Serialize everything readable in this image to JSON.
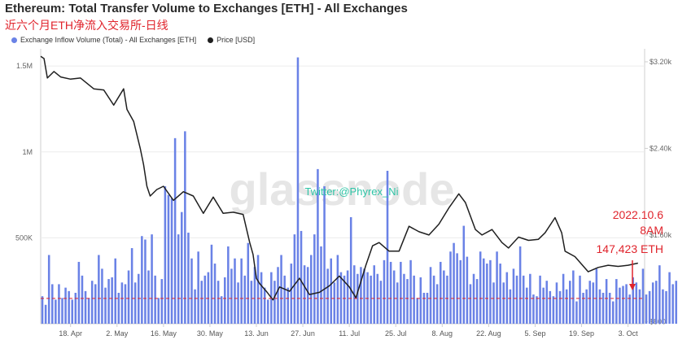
{
  "title": "Ethereum: Total Transfer Volume to Exchanges [ETH] - All Exchanges",
  "subtitle": "近六个月ETH净流入交易所-日线",
  "watermark": "glassnode",
  "watermark_twitter": "Twitter:@Phyrex_Ni",
  "annotation": {
    "date": "2022.10.6",
    "time": "8AM",
    "value": "147,423 ETH"
  },
  "colors": {
    "bars": "#6a82e6",
    "price": "#1f1f1f",
    "annotation": "#e0242c"
  },
  "chart_data": {
    "type": "bar",
    "title": "Ethereum: Total Transfer Volume to Exchanges [ETH] - All Exchanges",
    "legend_position": "top-left",
    "grid": true,
    "x_tick_labels": [
      "18. Apr",
      "2. May",
      "16. May",
      "30. May",
      "13. Jun",
      "27. Jun",
      "11. Jul",
      "25. Jul",
      "8. Aug",
      "22. Aug",
      "5. Sep",
      "19. Sep",
      "3. Oct"
    ],
    "y_left": {
      "ticks": [
        "500K",
        "1M",
        "1.5M"
      ],
      "tick_values": [
        500000,
        1000000,
        1500000
      ],
      "range": [
        0,
        1600000
      ]
    },
    "y_right": {
      "ticks": [
        "$800",
        "$1.60k",
        "$2.40k",
        "$3.20k"
      ],
      "tick_values": [
        800,
        1600,
        2400,
        3200
      ],
      "range": [
        780,
        3320
      ]
    },
    "reference_line": 147423,
    "series": [
      {
        "name": "Exchange Inflow Volume (Total) - All Exchanges [ETH]",
        "kind": "bar",
        "axis": "left",
        "start_date": "2022-04-09",
        "values": [
          160000,
          110000,
          400000,
          230000,
          140000,
          230000,
          150000,
          210000,
          190000,
          140000,
          180000,
          360000,
          280000,
          190000,
          150000,
          250000,
          230000,
          400000,
          320000,
          210000,
          260000,
          270000,
          380000,
          180000,
          240000,
          230000,
          310000,
          440000,
          240000,
          290000,
          510000,
          490000,
          310000,
          520000,
          280000,
          150000,
          260000,
          800000,
          750000,
          730000,
          1080000,
          520000,
          650000,
          1120000,
          530000,
          380000,
          200000,
          420000,
          250000,
          280000,
          300000,
          460000,
          350000,
          250000,
          160000,
          270000,
          450000,
          320000,
          380000,
          240000,
          380000,
          280000,
          470000,
          250000,
          330000,
          400000,
          300000,
          210000,
          140000,
          300000,
          250000,
          330000,
          400000,
          280000,
          210000,
          350000,
          520000,
          1550000,
          540000,
          340000,
          330000,
          400000,
          520000,
          900000,
          450000,
          800000,
          320000,
          380000,
          240000,
          400000,
          300000,
          280000,
          310000,
          620000,
          340000,
          290000,
          330000,
          320000,
          300000,
          280000,
          340000,
          290000,
          250000,
          370000,
          890000,
          360000,
          310000,
          240000,
          360000,
          290000,
          260000,
          370000,
          280000,
          150000,
          270000,
          180000,
          180000,
          330000,
          280000,
          230000,
          360000,
          310000,
          280000,
          420000,
          470000,
          410000,
          370000,
          570000,
          390000,
          230000,
          290000,
          260000,
          420000,
          380000,
          350000,
          370000,
          240000,
          420000,
          350000,
          240000,
          300000,
          200000,
          320000,
          280000,
          450000,
          280000,
          210000,
          290000,
          170000,
          160000,
          280000,
          210000,
          250000,
          190000,
          160000,
          240000,
          190000,
          290000,
          200000,
          250000,
          310000,
          130000,
          280000,
          180000,
          200000,
          250000,
          240000,
          320000,
          200000,
          180000,
          260000,
          180000,
          130000,
          260000,
          210000,
          220000,
          230000,
          170000,
          270000,
          240000,
          200000,
          320000,
          170000,
          190000,
          240000,
          250000,
          340000,
          200000,
          190000,
          300000,
          230000,
          250000,
          180000,
          220000,
          260000,
          190000,
          270000,
          170000,
          230000,
          360000,
          250000,
          280000,
          190000,
          250000,
          280000,
          330000,
          260000,
          220000,
          470000,
          350000,
          290000,
          250000,
          280000,
          470000,
          500000,
          380000,
          320000,
          340000,
          300000,
          420000,
          350000,
          560000,
          400000,
          460000,
          1410000,
          720000,
          510000,
          470000,
          360000,
          420000,
          280000,
          320000,
          250000,
          270000,
          300000,
          240000,
          230000,
          260000,
          280000,
          220000,
          270000,
          220000,
          290000,
          230000,
          160000,
          210000,
          140000,
          150000
        ]
      },
      {
        "name": "Price [USD]",
        "kind": "line",
        "axis": "right",
        "x_dates": [
          "2022-04-09",
          "2022-04-10",
          "2022-04-11",
          "2022-04-13",
          "2022-04-15",
          "2022-04-18",
          "2022-04-21",
          "2022-04-25",
          "2022-04-28",
          "2022-05-01",
          "2022-05-04",
          "2022-05-05",
          "2022-05-07",
          "2022-05-09",
          "2022-05-10",
          "2022-05-11",
          "2022-05-12",
          "2022-05-14",
          "2022-05-16",
          "2022-05-19",
          "2022-05-22",
          "2022-05-25",
          "2022-05-28",
          "2022-05-31",
          "2022-06-03",
          "2022-06-06",
          "2022-06-09",
          "2022-06-11",
          "2022-06-12",
          "2022-06-13",
          "2022-06-14",
          "2022-06-16",
          "2022-06-18",
          "2022-06-20",
          "2022-06-23",
          "2022-06-26",
          "2022-06-29",
          "2022-07-02",
          "2022-07-05",
          "2022-07-08",
          "2022-07-11",
          "2022-07-13",
          "2022-07-16",
          "2022-07-18",
          "2022-07-20",
          "2022-07-23",
          "2022-07-26",
          "2022-07-29",
          "2022-08-01",
          "2022-08-04",
          "2022-08-07",
          "2022-08-10",
          "2022-08-13",
          "2022-08-15",
          "2022-08-18",
          "2022-08-20",
          "2022-08-23",
          "2022-08-26",
          "2022-08-28",
          "2022-08-31",
          "2022-09-03",
          "2022-09-06",
          "2022-09-08",
          "2022-09-11",
          "2022-09-13",
          "2022-09-14",
          "2022-09-17",
          "2022-09-19",
          "2022-09-21",
          "2022-09-24",
          "2022-09-27",
          "2022-09-30",
          "2022-10-03",
          "2022-10-06"
        ],
        "values": [
          3250,
          3230,
          3050,
          3110,
          3060,
          3040,
          3050,
          2950,
          2940,
          2800,
          2950,
          2760,
          2650,
          2400,
          2250,
          2050,
          1960,
          2020,
          2050,
          1920,
          2000,
          1960,
          1800,
          1950,
          1800,
          1810,
          1790,
          1530,
          1420,
          1200,
          1150,
          1080,
          1000,
          1120,
          1080,
          1200,
          1050,
          1070,
          1130,
          1220,
          1120,
          1020,
          1320,
          1500,
          1530,
          1450,
          1450,
          1680,
          1630,
          1600,
          1700,
          1850,
          1980,
          1900,
          1650,
          1600,
          1650,
          1530,
          1480,
          1580,
          1550,
          1560,
          1620,
          1760,
          1620,
          1450,
          1400,
          1330,
          1260,
          1300,
          1320,
          1310,
          1320,
          1340
        ]
      }
    ]
  }
}
